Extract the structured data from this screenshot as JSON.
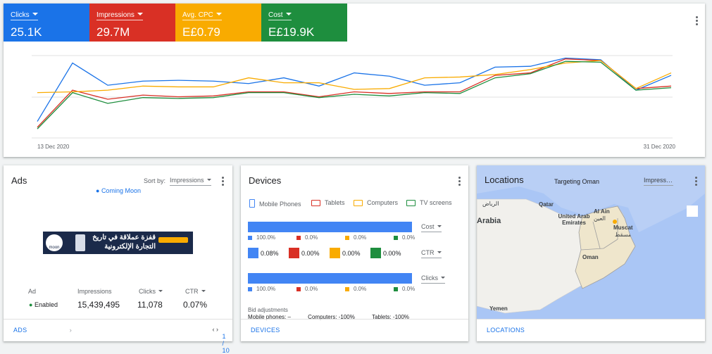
{
  "chart_data": {
    "type": "line",
    "categories": [
      "13 Dec 2020",
      null,
      null,
      null,
      null,
      null,
      null,
      null,
      null,
      null,
      null,
      null,
      null,
      null,
      null,
      null,
      null,
      null,
      "31 Dec 2020"
    ],
    "series": [
      {
        "name": "Clicks",
        "total": "25.1K",
        "color": "#1a73e8",
        "values": [
          20,
          91,
          64,
          69,
          70,
          69,
          66,
          73,
          63,
          79,
          75,
          64,
          67,
          86,
          87,
          97,
          95,
          58,
          76
        ]
      },
      {
        "name": "Impressions",
        "total": "29.7M",
        "color": "#d93025",
        "values": [
          13,
          58,
          47,
          52,
          50,
          51,
          56,
          56,
          50,
          56,
          54,
          56,
          56,
          76,
          79,
          96,
          94,
          60,
          63
        ]
      },
      {
        "name": "Avg. CPC",
        "total": "E£0.79",
        "color": "#f9ab00",
        "values": [
          55,
          56,
          58,
          63,
          62,
          62,
          73,
          67,
          67,
          59,
          60,
          73,
          74,
          77,
          83,
          91,
          94,
          60,
          79
        ]
      },
      {
        "name": "Cost",
        "total": "E£19.9K",
        "color": "#1e8e3e",
        "values": [
          11,
          55,
          42,
          49,
          48,
          49,
          55,
          55,
          49,
          53,
          51,
          55,
          54,
          73,
          78,
          93,
          92,
          58,
          61
        ]
      }
    ],
    "ylim": [
      0,
      100
    ]
  },
  "ads": {
    "title": "Ads",
    "sort_label": "Sort by:",
    "sort_value": "Impressions",
    "campaign": "Coming Moon",
    "banner_logo": "moon",
    "banner_line1": "قفزة عملاقة في تاريخ",
    "banner_line2": "التجارة الإلكترونية",
    "columns": [
      "Ad",
      "Impressions",
      "Clicks",
      "CTR"
    ],
    "row": [
      "Enabled",
      "15,439,495",
      "11,078",
      "0.07%"
    ],
    "footer": "ADS",
    "pager": "1 / 10"
  },
  "devices": {
    "title": "Devices",
    "legend": [
      "Mobile Phones",
      "Tablets",
      "Computers",
      "TV screens"
    ],
    "colors": [
      "#4285f4",
      "#d93025",
      "#f9ab00",
      "#1e8e3e"
    ],
    "rows": [
      {
        "metric": "Cost",
        "values": [
          100,
          0,
          0,
          0
        ],
        "value_labels": [
          "100.0%",
          "0.0%",
          "0.0%",
          "0.0%"
        ]
      },
      {
        "metric": "CTR",
        "values": [
          0.08,
          0,
          0,
          0
        ],
        "value_labels": [
          "0.08%",
          "0.00%",
          "0.00%",
          "0.00%"
        ]
      },
      {
        "metric": "Clicks",
        "values": [
          100,
          0,
          0,
          0
        ],
        "value_labels": [
          "100.0%",
          "0.0%",
          "0.0%",
          "0.0%"
        ]
      }
    ],
    "bid_title": "Bid adjustments",
    "bids": [
      "Mobile phones: –",
      "Computers: -100%",
      "Tablets: -100%"
    ],
    "footer": "DEVICES"
  },
  "locations": {
    "title": "Locations",
    "targeting": "Targeting Oman",
    "metric": "Impressions",
    "labels": [
      "Qatar",
      "United Arab Emirates",
      "Al Ain",
      "العين",
      "Muscat",
      "مسقط",
      "Oman",
      "Arabia",
      "Yemen",
      "الرياض"
    ],
    "footer": "LOCATIONS"
  }
}
